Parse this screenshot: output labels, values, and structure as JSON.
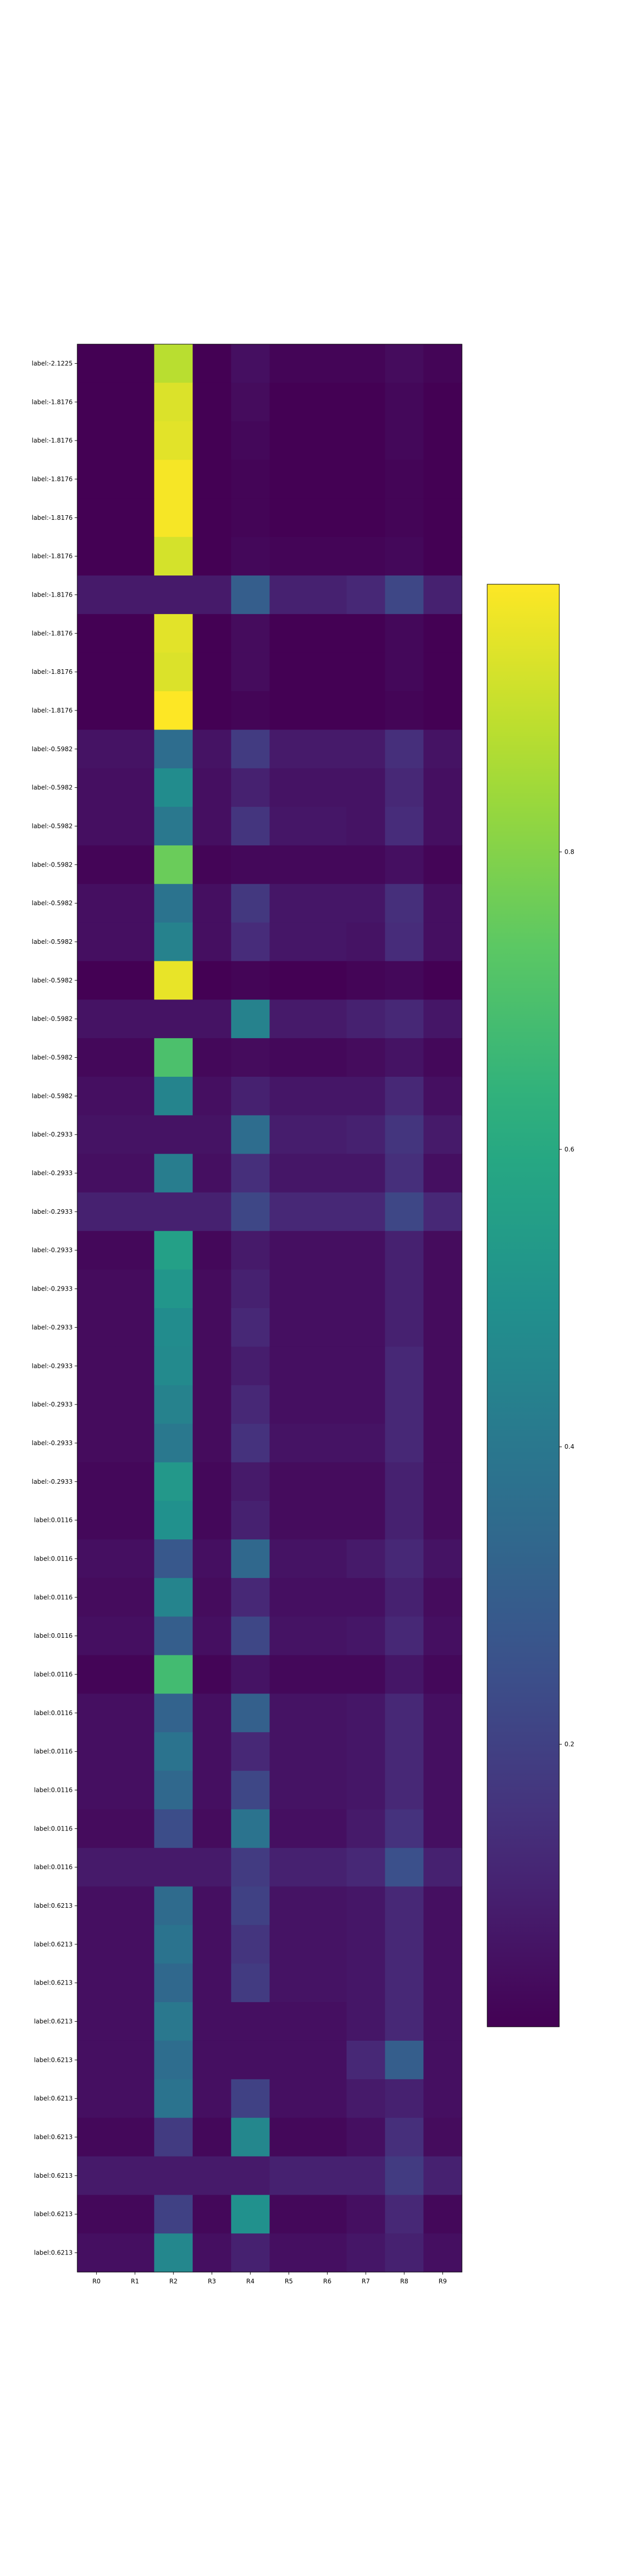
{
  "chart_data": {
    "type": "heatmap",
    "title": "",
    "xlabel": "",
    "ylabel": "",
    "x_categories": [
      "R0",
      "R1",
      "R2",
      "R3",
      "R4",
      "R5",
      "R6",
      "R7",
      "R8",
      "R9"
    ],
    "y_categories": [
      "label:-2.1225",
      "label:-1.8176",
      "label:-1.8176",
      "label:-1.8176",
      "label:-1.8176",
      "label:-1.8176",
      "label:-1.8176",
      "label:-1.8176",
      "label:-1.8176",
      "label:-1.8176",
      "label:-0.5982",
      "label:-0.5982",
      "label:-0.5982",
      "label:-0.5982",
      "label:-0.5982",
      "label:-0.5982",
      "label:-0.5982",
      "label:-0.5982",
      "label:-0.5982",
      "label:-0.5982",
      "label:-0.2933",
      "label:-0.2933",
      "label:-0.2933",
      "label:-0.2933",
      "label:-0.2933",
      "label:-0.2933",
      "label:-0.2933",
      "label:-0.2933",
      "label:-0.2933",
      "label:-0.2933",
      "label:0.0116",
      "label:0.0116",
      "label:0.0116",
      "label:0.0116",
      "label:0.0116",
      "label:0.0116",
      "label:0.0116",
      "label:0.0116",
      "label:0.0116",
      "label:0.0116",
      "label:0.6213",
      "label:0.6213",
      "label:0.6213",
      "label:0.6213",
      "label:0.6213",
      "label:0.6213",
      "label:0.6213",
      "label:0.6213",
      "label:0.6213",
      "label:0.6213"
    ],
    "values": [
      [
        0.01,
        0.01,
        0.88,
        0.01,
        0.05,
        0.02,
        0.02,
        0.02,
        0.04,
        0.02
      ],
      [
        0.01,
        0.01,
        0.93,
        0.01,
        0.04,
        0.01,
        0.01,
        0.01,
        0.03,
        0.01
      ],
      [
        0.01,
        0.01,
        0.94,
        0.01,
        0.03,
        0.01,
        0.01,
        0.01,
        0.03,
        0.01
      ],
      [
        0.01,
        0.01,
        0.97,
        0.01,
        0.02,
        0.01,
        0.01,
        0.01,
        0.02,
        0.01
      ],
      [
        0.01,
        0.01,
        0.97,
        0.01,
        0.02,
        0.01,
        0.01,
        0.01,
        0.02,
        0.01
      ],
      [
        0.01,
        0.01,
        0.92,
        0.01,
        0.03,
        0.02,
        0.02,
        0.02,
        0.03,
        0.01
      ],
      [
        0.08,
        0.08,
        0.08,
        0.08,
        0.3,
        0.1,
        0.1,
        0.12,
        0.22,
        0.1
      ],
      [
        0.01,
        0.01,
        0.94,
        0.01,
        0.04,
        0.01,
        0.01,
        0.01,
        0.03,
        0.01
      ],
      [
        0.01,
        0.01,
        0.93,
        0.01,
        0.04,
        0.01,
        0.01,
        0.01,
        0.03,
        0.01
      ],
      [
        0.01,
        0.01,
        0.98,
        0.01,
        0.02,
        0.01,
        0.01,
        0.01,
        0.02,
        0.01
      ],
      [
        0.06,
        0.06,
        0.36,
        0.06,
        0.18,
        0.08,
        0.08,
        0.08,
        0.14,
        0.06
      ],
      [
        0.05,
        0.05,
        0.48,
        0.05,
        0.1,
        0.06,
        0.06,
        0.06,
        0.12,
        0.05
      ],
      [
        0.05,
        0.05,
        0.4,
        0.05,
        0.16,
        0.07,
        0.07,
        0.06,
        0.13,
        0.05
      ],
      [
        0.02,
        0.02,
        0.76,
        0.02,
        0.03,
        0.03,
        0.03,
        0.03,
        0.05,
        0.02
      ],
      [
        0.05,
        0.05,
        0.38,
        0.05,
        0.17,
        0.07,
        0.07,
        0.07,
        0.14,
        0.05
      ],
      [
        0.05,
        0.05,
        0.44,
        0.05,
        0.13,
        0.07,
        0.07,
        0.06,
        0.13,
        0.05
      ],
      [
        0.01,
        0.01,
        0.95,
        0.01,
        0.02,
        0.01,
        0.01,
        0.02,
        0.03,
        0.01
      ],
      [
        0.06,
        0.06,
        0.06,
        0.06,
        0.44,
        0.08,
        0.08,
        0.1,
        0.12,
        0.07
      ],
      [
        0.03,
        0.03,
        0.7,
        0.03,
        0.04,
        0.03,
        0.03,
        0.04,
        0.06,
        0.03
      ],
      [
        0.05,
        0.05,
        0.45,
        0.05,
        0.1,
        0.07,
        0.07,
        0.07,
        0.12,
        0.05
      ],
      [
        0.06,
        0.06,
        0.06,
        0.06,
        0.36,
        0.09,
        0.09,
        0.1,
        0.16,
        0.08
      ],
      [
        0.05,
        0.05,
        0.42,
        0.05,
        0.14,
        0.07,
        0.07,
        0.07,
        0.14,
        0.05
      ],
      [
        0.1,
        0.1,
        0.1,
        0.1,
        0.22,
        0.12,
        0.12,
        0.12,
        0.22,
        0.12
      ],
      [
        0.03,
        0.03,
        0.56,
        0.03,
        0.08,
        0.05,
        0.05,
        0.05,
        0.1,
        0.04
      ],
      [
        0.04,
        0.04,
        0.52,
        0.04,
        0.1,
        0.05,
        0.05,
        0.05,
        0.1,
        0.04
      ],
      [
        0.04,
        0.04,
        0.48,
        0.04,
        0.12,
        0.05,
        0.05,
        0.05,
        0.1,
        0.04
      ],
      [
        0.04,
        0.04,
        0.47,
        0.04,
        0.09,
        0.05,
        0.05,
        0.05,
        0.12,
        0.04
      ],
      [
        0.04,
        0.04,
        0.44,
        0.04,
        0.12,
        0.05,
        0.05,
        0.05,
        0.12,
        0.04
      ],
      [
        0.04,
        0.04,
        0.4,
        0.04,
        0.15,
        0.06,
        0.06,
        0.06,
        0.12,
        0.04
      ],
      [
        0.03,
        0.03,
        0.53,
        0.03,
        0.08,
        0.04,
        0.04,
        0.04,
        0.1,
        0.04
      ],
      [
        0.03,
        0.03,
        0.5,
        0.03,
        0.1,
        0.04,
        0.04,
        0.04,
        0.1,
        0.04
      ],
      [
        0.05,
        0.05,
        0.28,
        0.05,
        0.34,
        0.06,
        0.06,
        0.08,
        0.12,
        0.06
      ],
      [
        0.04,
        0.04,
        0.45,
        0.04,
        0.12,
        0.05,
        0.05,
        0.05,
        0.1,
        0.04
      ],
      [
        0.05,
        0.05,
        0.3,
        0.05,
        0.22,
        0.06,
        0.06,
        0.07,
        0.12,
        0.05
      ],
      [
        0.02,
        0.02,
        0.68,
        0.02,
        0.06,
        0.03,
        0.03,
        0.03,
        0.07,
        0.03
      ],
      [
        0.05,
        0.05,
        0.32,
        0.05,
        0.31,
        0.06,
        0.06,
        0.07,
        0.12,
        0.05
      ],
      [
        0.05,
        0.05,
        0.38,
        0.05,
        0.12,
        0.06,
        0.06,
        0.07,
        0.12,
        0.05
      ],
      [
        0.05,
        0.05,
        0.34,
        0.05,
        0.22,
        0.06,
        0.06,
        0.07,
        0.12,
        0.05
      ],
      [
        0.04,
        0.04,
        0.24,
        0.04,
        0.38,
        0.05,
        0.05,
        0.08,
        0.15,
        0.05
      ],
      [
        0.08,
        0.08,
        0.08,
        0.08,
        0.18,
        0.1,
        0.1,
        0.12,
        0.25,
        0.1
      ],
      [
        0.05,
        0.05,
        0.35,
        0.05,
        0.2,
        0.06,
        0.06,
        0.07,
        0.12,
        0.05
      ],
      [
        0.05,
        0.05,
        0.38,
        0.05,
        0.16,
        0.06,
        0.06,
        0.07,
        0.12,
        0.05
      ],
      [
        0.05,
        0.05,
        0.34,
        0.05,
        0.18,
        0.06,
        0.06,
        0.07,
        0.12,
        0.05
      ],
      [
        0.05,
        0.05,
        0.4,
        0.05,
        0.05,
        0.05,
        0.05,
        0.07,
        0.12,
        0.05
      ],
      [
        0.05,
        0.05,
        0.36,
        0.05,
        0.05,
        0.05,
        0.05,
        0.12,
        0.3,
        0.05
      ],
      [
        0.05,
        0.05,
        0.38,
        0.05,
        0.2,
        0.05,
        0.05,
        0.08,
        0.1,
        0.05
      ],
      [
        0.03,
        0.03,
        0.18,
        0.03,
        0.46,
        0.03,
        0.03,
        0.05,
        0.14,
        0.04
      ],
      [
        0.08,
        0.08,
        0.08,
        0.08,
        0.08,
        0.1,
        0.1,
        0.1,
        0.18,
        0.1
      ],
      [
        0.03,
        0.03,
        0.2,
        0.03,
        0.5,
        0.03,
        0.03,
        0.05,
        0.12,
        0.03
      ],
      [
        0.05,
        0.05,
        0.46,
        0.05,
        0.1,
        0.05,
        0.05,
        0.07,
        0.1,
        0.05
      ]
    ],
    "colormap": "viridis",
    "vmin": 0.0,
    "vmax": 1.0,
    "colorbar": {
      "ticks": [
        0.2,
        0.4,
        0.6,
        0.8
      ],
      "tick_labels": [
        "0.2",
        "0.4",
        "0.6",
        "0.8"
      ],
      "range": [
        0.01,
        0.98
      ],
      "placement": "right"
    }
  }
}
